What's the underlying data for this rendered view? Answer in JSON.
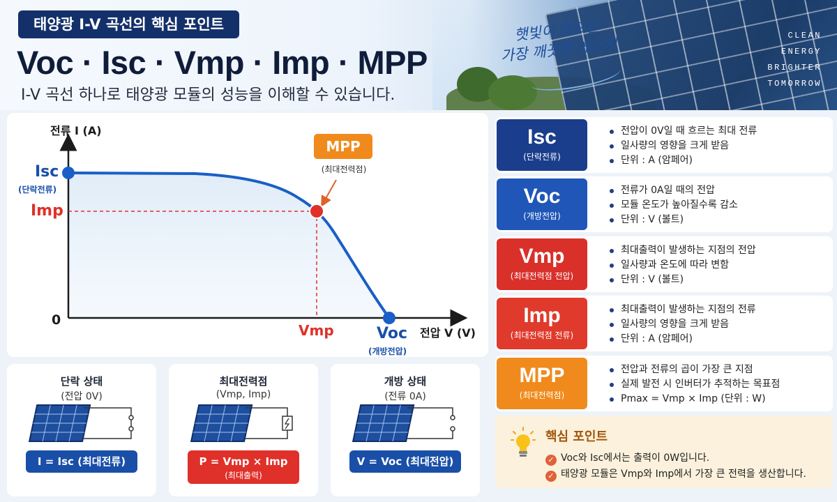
{
  "header": {
    "tag": "태양광 I-V 곡선의 핵심 포인트",
    "title": "Voc · Isc · Vmp · Imp · MPP",
    "subtitle": "I-V 곡선 하나로 태양광 모듈의 성능을 이해할 수 있습니다.",
    "handwritten_line1": "햇빛이 만드는",
    "handwritten_line2": "가장 깨끗한 에너지",
    "slogan": [
      "CLEAN",
      "ENERGY",
      "BRIGHTER",
      "TOMORROW"
    ]
  },
  "chart": {
    "y_axis_label": "전류 I (A)",
    "x_axis_label": "전압 V (V)",
    "origin_label": "0",
    "isc_label": "Isc",
    "isc_sub": "(단락전류)",
    "imp_label": "Imp",
    "vmp_label": "Vmp",
    "voc_label": "Voc",
    "voc_sub": "(개방전압)",
    "mpp_badge": "MPP",
    "mpp_sub": "(최대전력점)"
  },
  "chart_data": {
    "type": "line",
    "title": "",
    "xlabel": "전압 V (V)",
    "ylabel": "전류 I (A)",
    "note": "Qualitative I-V curve without numeric ticks; key points labeled Isc (V=0), MPP (Vmp, Imp), Voc (I=0)",
    "points": [
      {
        "label": "Isc",
        "x": 0,
        "y": "Isc"
      },
      {
        "label": "MPP",
        "x": "Vmp",
        "y": "Imp"
      },
      {
        "label": "Voc",
        "x": "Voc",
        "y": 0
      }
    ]
  },
  "states": [
    {
      "title": "단락 상태",
      "sub": "(전압 0V)",
      "formula": "I = Isc (최대전류)",
      "formula2": "",
      "color": "#1a4fa8"
    },
    {
      "title": "최대전력점",
      "sub": "(Vmp, Imp)",
      "formula": "P = Vmp × Imp",
      "formula2": "(최대출력)",
      "color": "#e0302a"
    },
    {
      "title": "개방 상태",
      "sub": "(전류 0A)",
      "formula": "V = Voc (최대전압)",
      "formula2": "",
      "color": "#1a4fa8"
    }
  ],
  "definitions": [
    {
      "name": "Isc",
      "sub": "(단락전류)",
      "color": "#1a3e8c",
      "points": [
        "전압이 0V일 때 흐르는 최대 전류",
        "일사량의 영향을 크게 받음",
        "단위 : A (암페어)"
      ]
    },
    {
      "name": "Voc",
      "sub": "(개방전압)",
      "color": "#1f56b8",
      "points": [
        "전류가 0A일 때의 전압",
        "모듈 온도가 높아질수록 감소",
        "단위 : V (볼트)"
      ]
    },
    {
      "name": "Vmp",
      "sub": "(최대전력점 전압)",
      "color": "#d9302a",
      "points": [
        "최대출력이 발생하는 지점의 전압",
        "일사량과 온도에 따라 변함",
        "단위 : V (볼트)"
      ]
    },
    {
      "name": "Imp",
      "sub": "(최대전력점 전류)",
      "color": "#e03a2c",
      "points": [
        "최대출력이 발생하는 지점의 전류",
        "일사량의 영향을 크게 받음",
        "단위 : A (암페어)"
      ]
    },
    {
      "name": "MPP",
      "sub": "(최대전력점)",
      "color": "#f08a1c",
      "points": [
        "전압과 전류의 곱이 가장 큰 지점",
        "실제 발전 시 인버터가 추적하는 목표점",
        "Pmax = Vmp × Imp (단위 : W)"
      ]
    }
  ],
  "key_point": {
    "title": "핵심 포인트",
    "items": [
      "Voc와 Isc에서는 출력이 0W입니다.",
      "태양광 모듈은 Vmp와 Imp에서 가장 큰 전력을 생산합니다."
    ]
  },
  "colors": {
    "navy": "#13306a",
    "blue": "#1a5fc7",
    "red": "#e0302a",
    "orange": "#f08a1c"
  }
}
